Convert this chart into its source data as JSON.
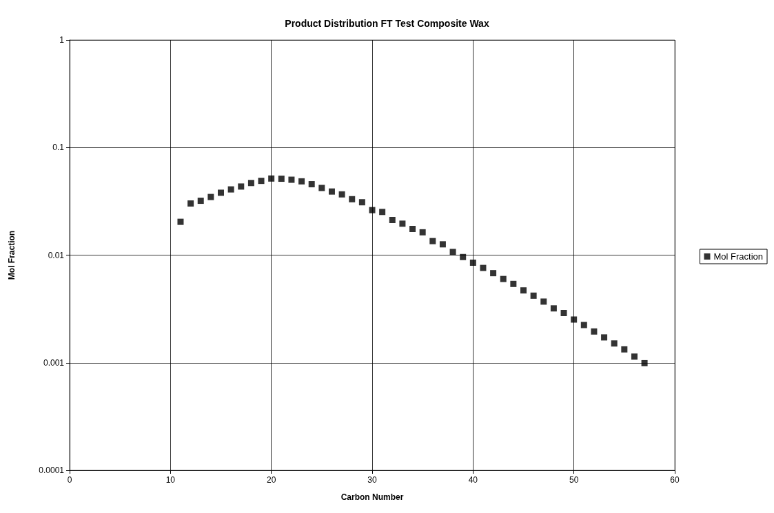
{
  "chart_data": {
    "type": "scatter",
    "title": "Product Distribution FT Test Composite Wax",
    "xlabel": "Carbon Number",
    "ylabel": "Mol Fraction",
    "x": [
      11,
      12,
      13,
      14,
      15,
      16,
      17,
      18,
      19,
      20,
      21,
      22,
      23,
      24,
      25,
      26,
      27,
      28,
      29,
      30,
      31,
      32,
      33,
      34,
      35,
      36,
      37,
      38,
      39,
      40,
      41,
      42,
      43,
      44,
      45,
      46,
      47,
      48,
      49,
      50,
      51,
      52,
      53,
      54,
      55,
      56,
      57
    ],
    "series": [
      {
        "name": "Mol Fraction",
        "color": "#000000",
        "values": [
          0.0204,
          0.0302,
          0.032,
          0.0347,
          0.038,
          0.0408,
          0.0434,
          0.0468,
          0.049,
          0.0515,
          0.0513,
          0.0502,
          0.0485,
          0.0456,
          0.0421,
          0.039,
          0.0367,
          0.0331,
          0.031,
          0.0262,
          0.0252,
          0.0212,
          0.0196,
          0.0175,
          0.0163,
          0.0135,
          0.0126,
          0.0107,
          0.0096,
          0.0085,
          0.0076,
          0.0068,
          0.006,
          0.0054,
          0.0047,
          0.0042,
          0.0037,
          0.0032,
          0.0029,
          0.00252,
          0.00224,
          0.00195,
          0.00172,
          0.00151,
          0.00133,
          0.00114,
          0.00099
        ]
      }
    ],
    "xlim": [
      0,
      60
    ],
    "xticks": [
      0,
      10,
      20,
      30,
      40,
      50,
      60
    ],
    "ylim": [
      0.0001,
      1
    ],
    "yticks": [
      0.0001,
      0.001,
      0.01,
      0.1,
      1
    ],
    "log": "y",
    "grid": true,
    "legend": "right",
    "marker": "square"
  }
}
